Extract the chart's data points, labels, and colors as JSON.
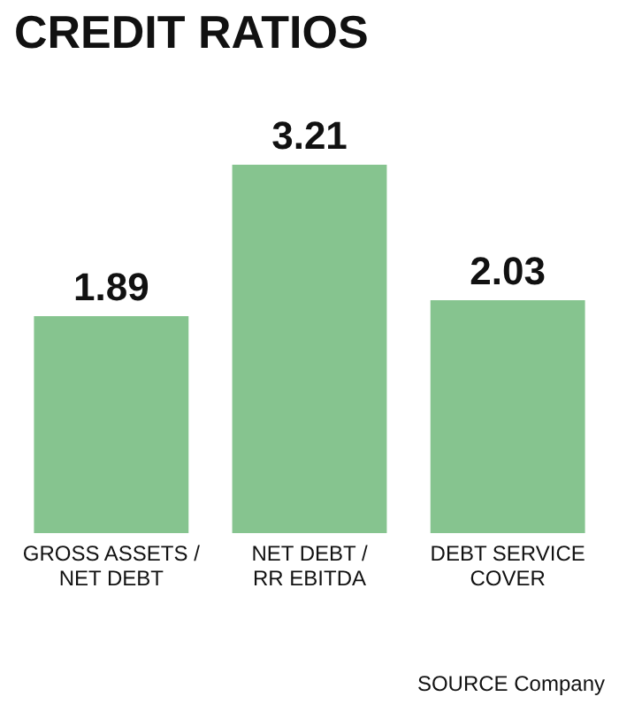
{
  "chart_data": {
    "type": "bar",
    "title": "CREDIT RATIOS",
    "categories": [
      "GROSS ASSETS / NET DEBT",
      "NET DEBT / RR EBITDA",
      "DEBT SERVICE COVER"
    ],
    "values": [
      1.89,
      3.21,
      2.03
    ],
    "color": "#86c48f",
    "data_labels": true,
    "annotations": [
      "SOURCE Company"
    ]
  }
}
